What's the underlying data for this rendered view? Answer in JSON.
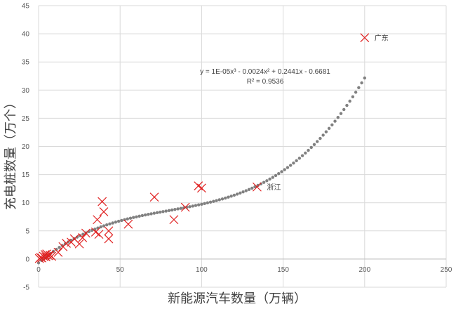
{
  "chart_data": {
    "type": "scatter",
    "xlabel": "新能源汽车数量（万辆）",
    "ylabel": "充电桩数量（万个）",
    "xlim": [
      0,
      250
    ],
    "ylim": [
      -5,
      45
    ],
    "x_ticks": [
      "0",
      "50",
      "100",
      "150",
      "200",
      "250"
    ],
    "y_ticks": [
      "-5",
      "0",
      "5",
      "10",
      "15",
      "20",
      "25",
      "30",
      "35",
      "40",
      "45"
    ],
    "grid": true,
    "marker": "x",
    "marker_color": "#e02020",
    "points": [
      {
        "x": 0.5,
        "y": 0.1
      },
      {
        "x": 1.2,
        "y": 0.3
      },
      {
        "x": 2.0,
        "y": 0.2
      },
      {
        "x": 3.0,
        "y": 0.5
      },
      {
        "x": 4.0,
        "y": 0.8
      },
      {
        "x": 4.5,
        "y": 0.4
      },
      {
        "x": 5.0,
        "y": 0.9
      },
      {
        "x": 6.0,
        "y": 0.6
      },
      {
        "x": 7.0,
        "y": 0.7
      },
      {
        "x": 8.0,
        "y": 0.5
      },
      {
        "x": 12.0,
        "y": 1.2
      },
      {
        "x": 15.0,
        "y": 2.2
      },
      {
        "x": 17.0,
        "y": 2.8
      },
      {
        "x": 20.0,
        "y": 3.0
      },
      {
        "x": 22.0,
        "y": 3.6
      },
      {
        "x": 25.0,
        "y": 2.7
      },
      {
        "x": 27.0,
        "y": 3.8
      },
      {
        "x": 29.0,
        "y": 4.6
      },
      {
        "x": 35.0,
        "y": 4.8
      },
      {
        "x": 36.0,
        "y": 7.0
      },
      {
        "x": 37.0,
        "y": 4.4
      },
      {
        "x": 39.0,
        "y": 10.2
      },
      {
        "x": 40.0,
        "y": 8.4
      },
      {
        "x": 43.0,
        "y": 5.0
      },
      {
        "x": 43.0,
        "y": 3.6
      },
      {
        "x": 55.0,
        "y": 6.2
      },
      {
        "x": 71.0,
        "y": 11.0
      },
      {
        "x": 83.0,
        "y": 7.0
      },
      {
        "x": 90.0,
        "y": 9.2
      },
      {
        "x": 98.0,
        "y": 13.0
      },
      {
        "x": 100.0,
        "y": 12.6
      },
      {
        "x": 134.0,
        "y": 12.8
      },
      {
        "x": 200.0,
        "y": 39.3
      }
    ],
    "point_labels": [
      {
        "x": 200.0,
        "y": 39.3,
        "text": "广东"
      },
      {
        "x": 134.0,
        "y": 12.8,
        "text": "浙江"
      }
    ],
    "trendline": {
      "kind": "polynomial-3",
      "style": "dotted",
      "color": "#808080",
      "coefficients": {
        "a3": 1e-05,
        "a2": -0.0024,
        "a1": 0.2441,
        "a0": -0.6681
      },
      "x_range": [
        0,
        200
      ],
      "equation_text": "y = 1E-05x³ - 0.0024x² + 0.2441x - 0.6681",
      "r2_text": "R² = 0.9536"
    }
  }
}
